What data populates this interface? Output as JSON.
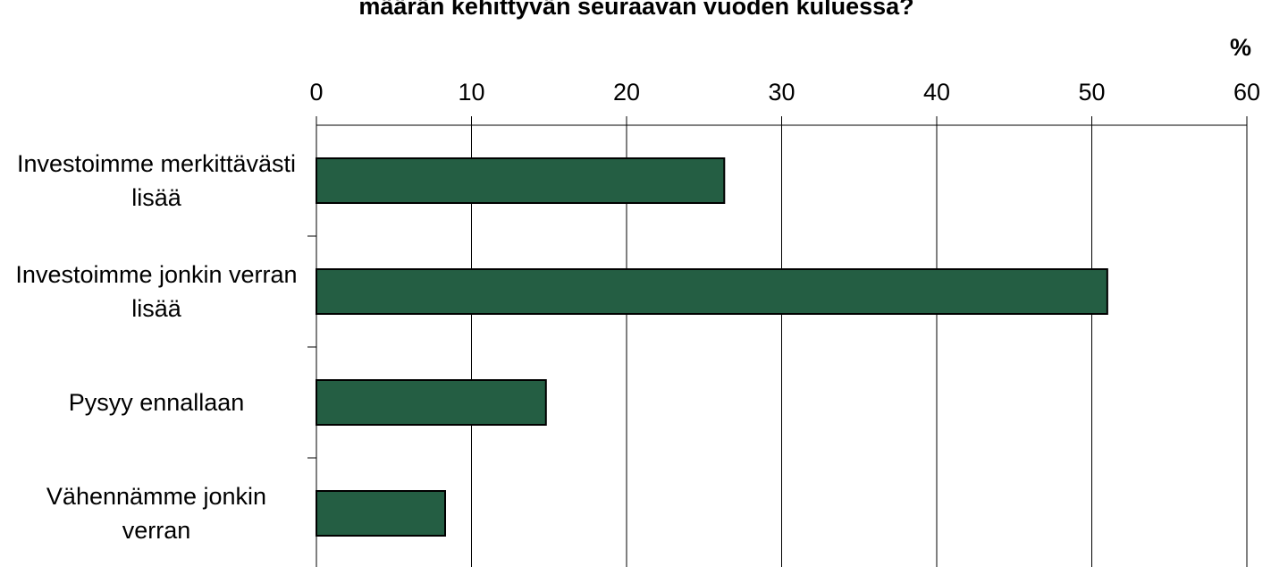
{
  "chart_data": {
    "type": "barh",
    "title": "määrän kehittyvän seuraavan vuoden kuluessa?",
    "xlabel": "%",
    "categories": [
      "Investoimme merkittävästi lisää",
      "Investoimme jonkin verran lisää",
      "Pysyy ennallaan",
      "Vähennämme jonkin verran"
    ],
    "values": [
      26.3,
      51.0,
      14.8,
      8.3
    ],
    "color": "#245e43",
    "xlim": [
      0,
      60
    ],
    "xticks": [
      0,
      10,
      20,
      30,
      40,
      50,
      60
    ],
    "grid": true
  }
}
